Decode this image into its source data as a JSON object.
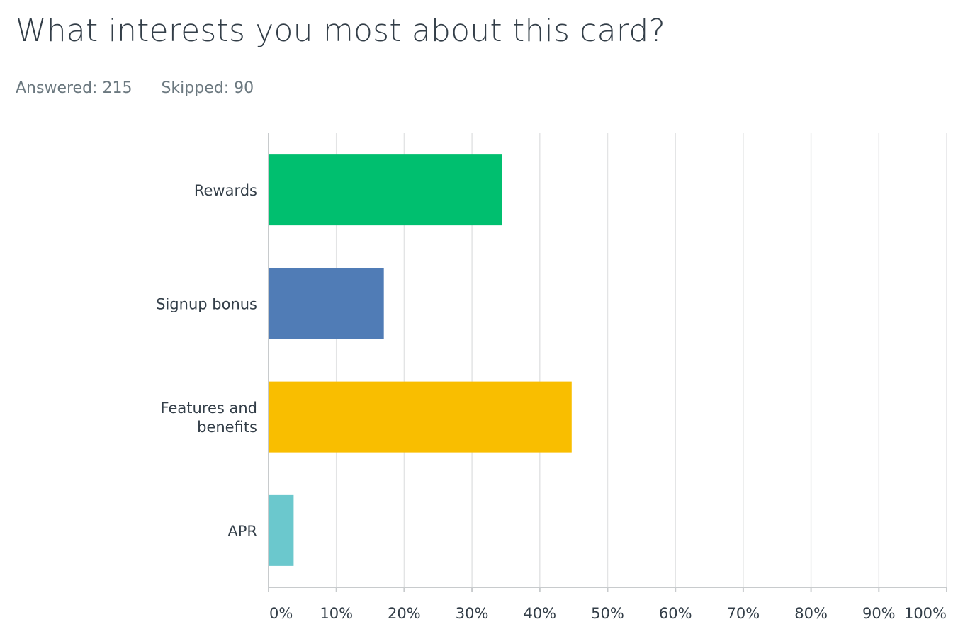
{
  "question": {
    "title": "What interests you most about this card?",
    "answered_label": "Answered: 215",
    "skipped_label": "Skipped: 90"
  },
  "chart_data": {
    "type": "bar",
    "orientation": "horizontal",
    "categories": [
      "Rewards",
      "Signup bonus",
      "Features and benefits",
      "APR"
    ],
    "category_lines": [
      [
        "Rewards"
      ],
      [
        "Signup bonus"
      ],
      [
        "Features and",
        "benefits"
      ],
      [
        "APR"
      ]
    ],
    "values": [
      34.4,
      17.0,
      44.7,
      3.7
    ],
    "colors": [
      "#00bf6f",
      "#507cb6",
      "#f9be00",
      "#6bc8cd"
    ],
    "xlim": [
      0,
      100
    ],
    "xticks": [
      0,
      10,
      20,
      30,
      40,
      50,
      60,
      70,
      80,
      90,
      100
    ],
    "xtick_labels": [
      "0%",
      "10%",
      "20%",
      "30%",
      "40%",
      "50%",
      "60%",
      "70%",
      "80%",
      "90%",
      "100%"
    ],
    "grid": true,
    "title": "",
    "xlabel": "",
    "ylabel": ""
  }
}
